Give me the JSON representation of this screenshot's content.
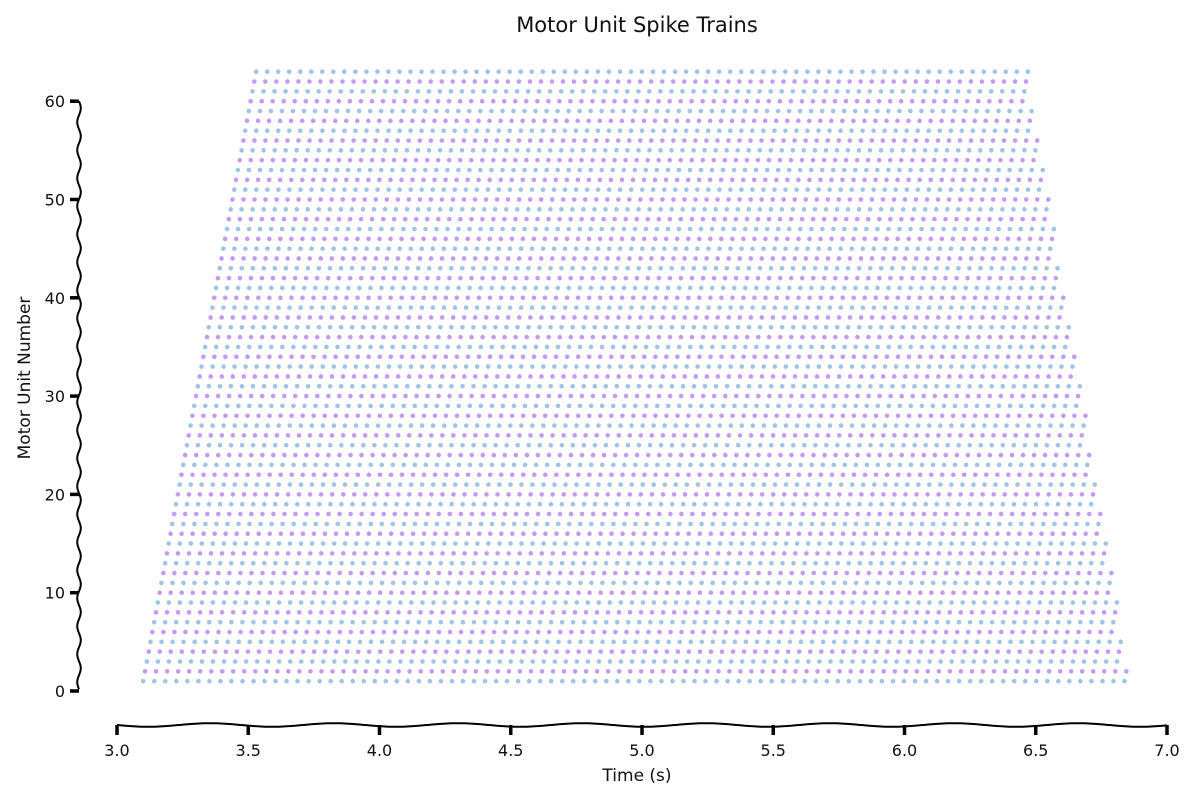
{
  "chart_data": {
    "type": "scatter",
    "title": "Motor Unit Spike Trains",
    "xlabel": "Time (s)",
    "ylabel": "Motor Unit Number",
    "xlim": [
      3.0,
      7.0
    ],
    "ylim": [
      0,
      63
    ],
    "xticks": [
      "3.0",
      "3.5",
      "4.0",
      "4.5",
      "5.0",
      "5.5",
      "6.0",
      "6.5",
      "7.0"
    ],
    "yticks": [
      "0",
      "10",
      "20",
      "30",
      "40",
      "50",
      "60"
    ],
    "grid": false,
    "legend": "none",
    "colors": {
      "odd_units": "#9ec4e6",
      "even_units": "#c39af6",
      "axis": "#000000"
    },
    "units": {
      "count": 63,
      "start_times": {
        "unit_1": 3.1,
        "unit_63": 3.53
      },
      "stop_times": {
        "unit_1": 6.86,
        "unit_63": 6.47
      },
      "spike_interval_s": 0.042
    }
  }
}
